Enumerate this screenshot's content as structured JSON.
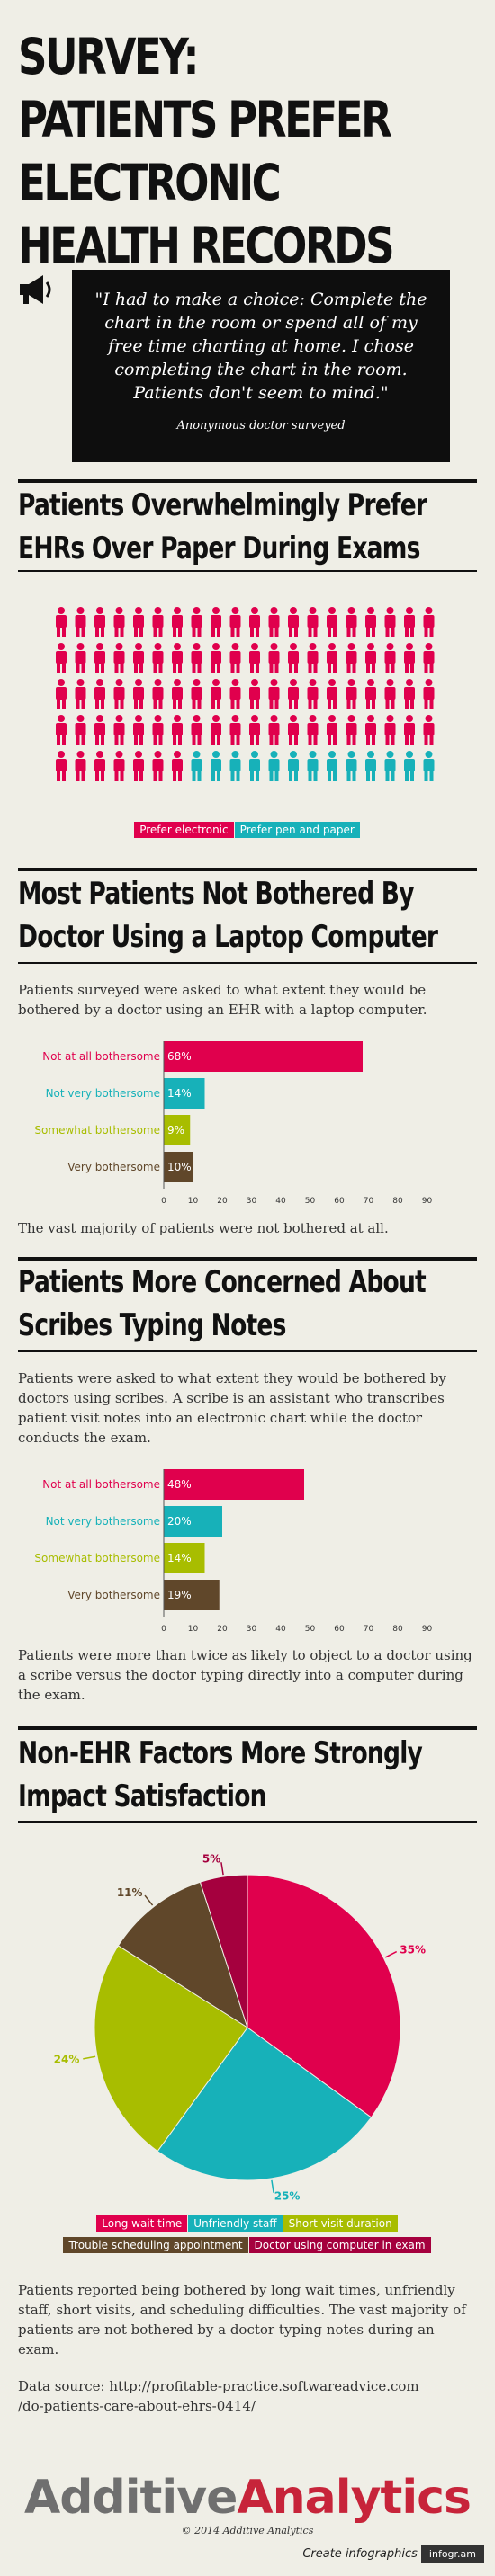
{
  "title": "SURVEY: PATIENTS PREFER ELECTRONIC HEALTH RECORDS",
  "quote": {
    "icon": "megaphone-icon",
    "text": "\"I had to make a choice: Complete the chart in the room or spend all of my free time charting at home. I chose completing the chart in the room. Patients don't seem to mind.\"",
    "attribution": "Anonymous doctor surveyed"
  },
  "sections": {
    "ehr": {
      "title": "Patients Overwhelmingly Prefer EHRs Over Paper During Exams"
    },
    "laptop": {
      "title": "Most Patients Not Bothered By Doctor Using a Laptop Computer",
      "intro": "Patients surveyed were asked to what extent they would be bothered by a doctor using an EHR with a laptop computer.",
      "conclusion": "The vast majority of patients were not bothered at all."
    },
    "scribe": {
      "title": "Patients More Concerned About Scribes Typing Notes",
      "intro": "Patients were asked to what extent they would be bothered by doctors using scribes. A scribe is an assistant who transcribes patient visit notes into an electronic chart while the doctor conducts the exam.",
      "conclusion": "Patients were more than twice as likely to object to a doctor using a scribe versus the doctor typing directly into a computer during the exam."
    },
    "factors": {
      "title": "Non-EHR Factors More Strongly Impact Satisfaction",
      "conclusion": "Patients reported being bothered by long wait times, unfriendly staff, short visits, and scheduling difficulties. The vast majority of patients are not bothered by a doctor typing notes during an exam.",
      "source_line1": "Data source: http://profitable-practice.softwareadvice.com",
      "source_line2": "/do-patients-care-about-ehrs-0414/"
    }
  },
  "chart_data": [
    {
      "type": "pictograph",
      "categories": [
        "Prefer electronic",
        "Prefer pen and paper"
      ],
      "values": [
        87,
        25
      ],
      "colors": [
        "#e0004d",
        "#17b1b9"
      ],
      "legend_position": "bottom"
    },
    {
      "type": "bar",
      "orientation": "horizontal",
      "categories": [
        "Not at all bothersome",
        "Not very bothersome",
        "Somewhat bothersome",
        "Very bothersome"
      ],
      "values": [
        68,
        14,
        9,
        10
      ],
      "data_labels": [
        "68%",
        "14%",
        "9%",
        "10%"
      ],
      "colors": [
        "#e0004d",
        "#17b1b9",
        "#a8bd00",
        "#60472a"
      ],
      "xticks": [
        "0",
        "10",
        "20",
        "30",
        "40",
        "50",
        "60",
        "70",
        "80",
        "90"
      ],
      "xlim": [
        0,
        90
      ]
    },
    {
      "type": "bar",
      "orientation": "horizontal",
      "categories": [
        "Not at all bothersome",
        "Not very bothersome",
        "Somewhat bothersome",
        "Very bothersome"
      ],
      "values": [
        48,
        20,
        14,
        19
      ],
      "data_labels": [
        "48%",
        "20%",
        "14%",
        "19%"
      ],
      "colors": [
        "#e0004d",
        "#17b1b9",
        "#a8bd00",
        "#60472a"
      ],
      "xticks": [
        "0",
        "10",
        "20",
        "30",
        "40",
        "50",
        "60",
        "70",
        "80",
        "90"
      ],
      "xlim": [
        0,
        90
      ]
    },
    {
      "type": "pie",
      "categories": [
        "Long wait time",
        "Unfriendly staff",
        "Short visit duration",
        "Trouble scheduling appointment",
        "Doctor using computer in exam"
      ],
      "values": [
        35,
        25,
        24,
        11,
        5
      ],
      "data_labels": [
        "35%",
        "25%",
        "24%",
        "11%",
        "5%"
      ],
      "colors": [
        "#e0004d",
        "#17b1b9",
        "#a8bd00",
        "#60472a",
        "#a5003e"
      ],
      "legend_position": "bottom"
    }
  ],
  "logo": {
    "part1": "Additive",
    "part2": "Analytics",
    "color1": "#6f6f6f",
    "color2": "#c7243a"
  },
  "footer": {
    "copyright": "© 2014 Additive Analytics",
    "create": "Create infographics",
    "brand": "infogr.am"
  }
}
